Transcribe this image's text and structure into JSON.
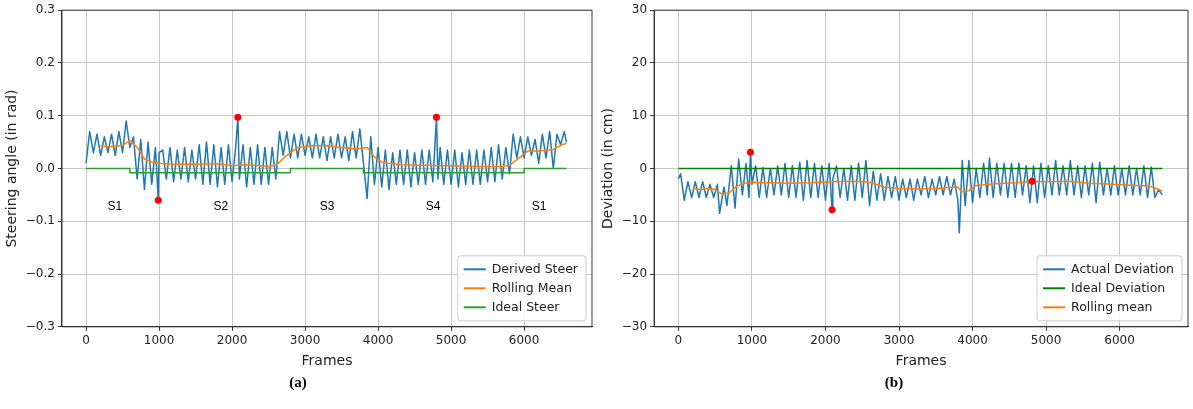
{
  "chart_data": [
    {
      "type": "line",
      "title": "(a)",
      "xlabel": "Frames",
      "ylabel": "Steering angle (in rad)",
      "xlim": [
        -330,
        6930
      ],
      "xticks": [
        0,
        1000,
        2000,
        3000,
        4000,
        5000,
        6000
      ],
      "ylim": [
        -0.3,
        0.3
      ],
      "yticks": [
        {
          "value": -0.3,
          "label": "−0.3"
        },
        {
          "value": -0.2,
          "label": "−0.2"
        },
        {
          "value": -0.1,
          "label": "−0.1"
        },
        {
          "value": 0,
          "label": "0.0"
        },
        {
          "value": 0.1,
          "label": "0.1"
        },
        {
          "value": 0.2,
          "label": "0.2"
        },
        {
          "value": 0.3,
          "label": "0.3"
        }
      ],
      "grid": true,
      "legend": "bottom right",
      "marker": "none",
      "line_style": "solid",
      "annotations": [
        "S1",
        "S2",
        "S3",
        "S4",
        "S1"
      ],
      "series": [
        {
          "name": "Derived Steer",
          "type": "line",
          "color": "#1f77b4",
          "x": [
            0,
            50,
            100,
            150,
            200,
            250,
            300,
            350,
            400,
            450,
            500,
            550,
            600,
            650,
            700,
            750,
            800,
            850,
            900,
            950,
            990,
            1000,
            1050,
            1100,
            1150,
            1200,
            1250,
            1300,
            1350,
            1400,
            1450,
            1500,
            1550,
            1600,
            1650,
            1700,
            1750,
            1800,
            1850,
            1900,
            1950,
            2000,
            2050,
            2080,
            2100,
            2150,
            2200,
            2250,
            2300,
            2350,
            2400,
            2450,
            2500,
            2550,
            2600,
            2650,
            2700,
            2750,
            2800,
            2850,
            2900,
            2950,
            3000,
            3050,
            3100,
            3150,
            3200,
            3250,
            3300,
            3350,
            3400,
            3450,
            3500,
            3550,
            3600,
            3650,
            3700,
            3750,
            3800,
            3850,
            3900,
            3950,
            4000,
            4050,
            4100,
            4150,
            4200,
            4250,
            4300,
            4350,
            4400,
            4450,
            4500,
            4550,
            4600,
            4650,
            4700,
            4750,
            4800,
            4820,
            4850,
            4900,
            4950,
            5000,
            5050,
            5100,
            5150,
            5200,
            5250,
            5300,
            5350,
            5400,
            5450,
            5500,
            5550,
            5600,
            5650,
            5700,
            5750,
            5800,
            5850,
            5900,
            5950,
            6000,
            6050,
            6100,
            6150,
            6200,
            6250,
            6300,
            6350,
            6400,
            6450,
            6500,
            6550,
            6580
          ],
          "values": [
            0.01,
            0.07,
            0.03,
            0.065,
            0.025,
            0.06,
            0.03,
            0.065,
            0.025,
            0.07,
            0.03,
            0.09,
            0.04,
            0.06,
            -0.02,
            0.055,
            -0.04,
            0.05,
            -0.03,
            0.04,
            -0.06,
            0.03,
            0.035,
            -0.02,
            0.04,
            -0.025,
            0.035,
            -0.02,
            0.04,
            -0.025,
            0.035,
            -0.02,
            0.045,
            -0.03,
            0.05,
            -0.03,
            0.045,
            -0.035,
            0.04,
            -0.03,
            0.045,
            -0.025,
            0.04,
            0.097,
            -0.02,
            0.045,
            -0.035,
            0.04,
            -0.03,
            0.045,
            -0.03,
            0.04,
            -0.03,
            0.04,
            -0.02,
            0.07,
            0.025,
            0.07,
            0.02,
            0.065,
            0.02,
            0.065,
            0.025,
            0.06,
            0.02,
            0.065,
            0.02,
            0.06,
            0.015,
            0.06,
            0.02,
            0.065,
            0.02,
            0.06,
            0.015,
            0.07,
            0.02,
            0.075,
            0.01,
            -0.057,
            0.06,
            -0.03,
            0.04,
            -0.035,
            0.035,
            -0.04,
            0.03,
            -0.03,
            0.035,
            -0.03,
            0.035,
            -0.035,
            0.03,
            -0.03,
            0.035,
            -0.03,
            0.035,
            -0.025,
            0.097,
            -0.02,
            0.04,
            -0.03,
            0.035,
            -0.03,
            0.035,
            -0.035,
            0.03,
            -0.03,
            0.035,
            -0.03,
            0.035,
            -0.03,
            0.035,
            -0.025,
            0.04,
            -0.025,
            0.045,
            -0.02,
            0.04,
            -0.01,
            0.065,
            0.02,
            0.06,
            0.02,
            0.06,
            0.025,
            0.055,
            0.01,
            0.065,
            0.02,
            0.07,
            0.0,
            0.065,
            0.045,
            0.07,
            0.05
          ]
        },
        {
          "name": "Rolling Mean",
          "type": "line",
          "color": "#ff7f0e",
          "x": [
            200,
            300,
            400,
            500,
            600,
            700,
            800,
            900,
            1000,
            1200,
            1500,
            1800,
            2000,
            2200,
            2500,
            2600,
            2750,
            2900,
            3100,
            3300,
            3500,
            3700,
            3850,
            3950,
            4050,
            4300,
            4600,
            5000,
            5400,
            5700,
            5800,
            5950,
            6050,
            6200,
            6400,
            6500,
            6580
          ],
          "values": [
            0.043,
            0.041,
            0.042,
            0.044,
            0.053,
            0.04,
            0.018,
            0.012,
            0.01,
            0.008,
            0.008,
            0.009,
            0.005,
            0.007,
            0.004,
            0.006,
            0.025,
            0.04,
            0.043,
            0.043,
            0.04,
            0.037,
            0.04,
            0.022,
            0.012,
            0.007,
            0.006,
            0.005,
            0.004,
            0.004,
            0.006,
            0.022,
            0.033,
            0.033,
            0.036,
            0.044,
            0.048
          ]
        },
        {
          "name": "Ideal Steer",
          "type": "step",
          "color": "#2ca02c",
          "x": [
            0,
            600,
            2800,
            3800,
            6000,
            6580
          ],
          "values": [
            0,
            -0.008,
            0,
            -0.008,
            0,
            0
          ]
        },
        {
          "type": "scatter",
          "marker": "circle",
          "color": "#ff0000",
          "x": [
            990,
            2080,
            4800
          ],
          "values": [
            -0.06,
            0.097,
            0.097
          ]
        }
      ]
    },
    {
      "type": "line",
      "title": "(b)",
      "xlabel": "Frames",
      "ylabel": "Deviation (in cm)",
      "xlim": [
        -330,
        6930
      ],
      "xticks": [
        0,
        1000,
        2000,
        3000,
        4000,
        5000,
        6000
      ],
      "ylim": [
        -30,
        30
      ],
      "yticks": [
        {
          "value": -30,
          "label": "−30"
        },
        {
          "value": -20,
          "label": "−20"
        },
        {
          "value": -10,
          "label": "−10"
        },
        0,
        10,
        20,
        30
      ],
      "grid": true,
      "legend": "bottom right",
      "marker": "none",
      "line_style": "solid",
      "series": [
        {
          "name": "Actual Deviation",
          "type": "line",
          "color": "#1f77b4",
          "x": [
            0,
            30,
            80,
            130,
            180,
            230,
            280,
            330,
            380,
            430,
            480,
            530,
            560,
            620,
            660,
            720,
            770,
            820,
            870,
            920,
            960,
            980,
            1000,
            1050,
            1100,
            1150,
            1200,
            1250,
            1300,
            1350,
            1400,
            1450,
            1500,
            1550,
            1600,
            1650,
            1700,
            1750,
            1800,
            1850,
            1900,
            1950,
            2000,
            2050,
            2090,
            2100,
            2150,
            2200,
            2250,
            2300,
            2350,
            2400,
            2450,
            2500,
            2550,
            2600,
            2650,
            2700,
            2750,
            2800,
            2850,
            2900,
            2950,
            3000,
            3050,
            3100,
            3150,
            3200,
            3250,
            3300,
            3350,
            3400,
            3450,
            3500,
            3550,
            3600,
            3650,
            3700,
            3750,
            3800,
            3820,
            3860,
            3900,
            3950,
            4000,
            4050,
            4100,
            4150,
            4200,
            4230,
            4280,
            4330,
            4380,
            4430,
            4480,
            4530,
            4580,
            4630,
            4680,
            4730,
            4780,
            4830,
            4880,
            4930,
            4980,
            5030,
            5080,
            5130,
            5180,
            5230,
            5280,
            5330,
            5380,
            5430,
            5480,
            5530,
            5580,
            5630,
            5680,
            5730,
            5780,
            5830,
            5880,
            5930,
            5980,
            6030,
            6080,
            6130,
            6180,
            6230,
            6280,
            6330,
            6380,
            6430,
            6480,
            6530,
            6580
          ],
          "values": [
            -2,
            -1,
            -6,
            -2.5,
            -5.5,
            -2.5,
            -5.5,
            -2.5,
            -5.5,
            -3,
            -5.5,
            -3,
            -8.5,
            -3.5,
            -7,
            0.5,
            -7.5,
            1.8,
            -5,
            1,
            -5.5,
            3.1,
            -3,
            0.5,
            -5.5,
            0.2,
            -5.5,
            0,
            -5,
            0.5,
            -5,
            1,
            -5.5,
            0.5,
            -5.5,
            1.2,
            -6,
            1.5,
            -5.5,
            1,
            -5.5,
            0.5,
            -6,
            1,
            -7.8,
            -2,
            0.5,
            -5.5,
            0,
            -6,
            0.5,
            -6,
            1,
            -5.5,
            1.5,
            -7,
            -0.5,
            -6,
            -1,
            -6,
            -1.5,
            -5.5,
            -1.5,
            -6,
            -2,
            -5.5,
            -2,
            -6,
            -2,
            -5,
            -1.5,
            -5.5,
            -2,
            -5,
            -1.5,
            -5,
            -1.5,
            -5,
            -2,
            -6,
            -12.2,
            1.5,
            -7,
            1.5,
            -6.5,
            0,
            -5.5,
            1,
            -5,
            2,
            -5.5,
            1,
            -5,
            1,
            -5.5,
            1,
            -5.5,
            1,
            -5,
            0.5,
            -6.5,
            0.5,
            -6.5,
            1,
            -5.5,
            0.5,
            -5,
            1.5,
            -5,
            0.5,
            -5,
            1.5,
            -5,
            0.5,
            -5.5,
            0.5,
            -5,
            1,
            -6.5,
            1.2,
            -5,
            0,
            -5,
            0.5,
            -5,
            0,
            -5,
            0.5,
            -5,
            0,
            -5,
            0.5,
            -5.5,
            0.3,
            -5.5,
            -4,
            -5
          ]
        },
        {
          "name": "Ideal Deviation",
          "type": "line",
          "color": "#008000",
          "x": [
            0,
            6580
          ],
          "values": [
            0,
            0
          ]
        },
        {
          "name": "Rolling mean",
          "type": "line",
          "color": "#ff7f0e",
          "x": [
            200,
            300,
            400,
            500,
            600,
            700,
            800,
            900,
            1000,
            1200,
            1500,
            1800,
            2100,
            2400,
            2600,
            2800,
            3000,
            3300,
            3600,
            3800,
            3850,
            3950,
            4050,
            4300,
            4600,
            4810,
            5000,
            5300,
            5600,
            5900,
            6200,
            6400,
            6500,
            6580
          ],
          "values": [
            -3.8,
            -4,
            -3.8,
            -4,
            -4.9,
            -4.5,
            -3.3,
            -2.8,
            -2.6,
            -2.7,
            -2.8,
            -2.7,
            -2.5,
            -2.4,
            -2.6,
            -3.5,
            -3.8,
            -3.9,
            -3.7,
            -3.5,
            -4.4,
            -4.2,
            -3.2,
            -2.9,
            -2.7,
            -2.4,
            -2.5,
            -2.4,
            -2.8,
            -3,
            -3.2,
            -3.3,
            -3.8,
            -4.3
          ]
        },
        {
          "type": "scatter",
          "marker": "circle",
          "color": "#ff0000",
          "x": [
            980,
            2090,
            4810
          ],
          "values": [
            3.1,
            -7.8,
            -2.4
          ]
        }
      ]
    }
  ]
}
